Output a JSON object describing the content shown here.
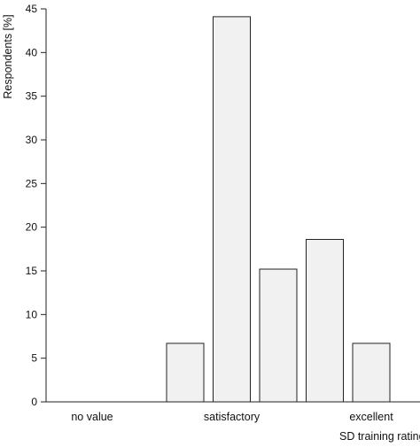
{
  "chart_data": {
    "type": "bar",
    "categories": [
      "no value",
      "",
      "",
      "satisfactory",
      "",
      "",
      "excellent"
    ],
    "tick_labels": [
      "no value",
      "satisfactory",
      "excellent"
    ],
    "values": [
      0,
      0,
      6.7,
      44.1,
      15.2,
      18.6,
      6.7
    ],
    "xlabel": "SD training rating",
    "ylabel": "Respondents [%]",
    "ylim": [
      0,
      45
    ],
    "yticks": [
      0,
      5,
      10,
      15,
      20,
      25,
      30,
      35,
      40,
      45
    ],
    "grid": false,
    "bar_fill": "#f1f1f1",
    "bar_stroke": "#222222"
  }
}
